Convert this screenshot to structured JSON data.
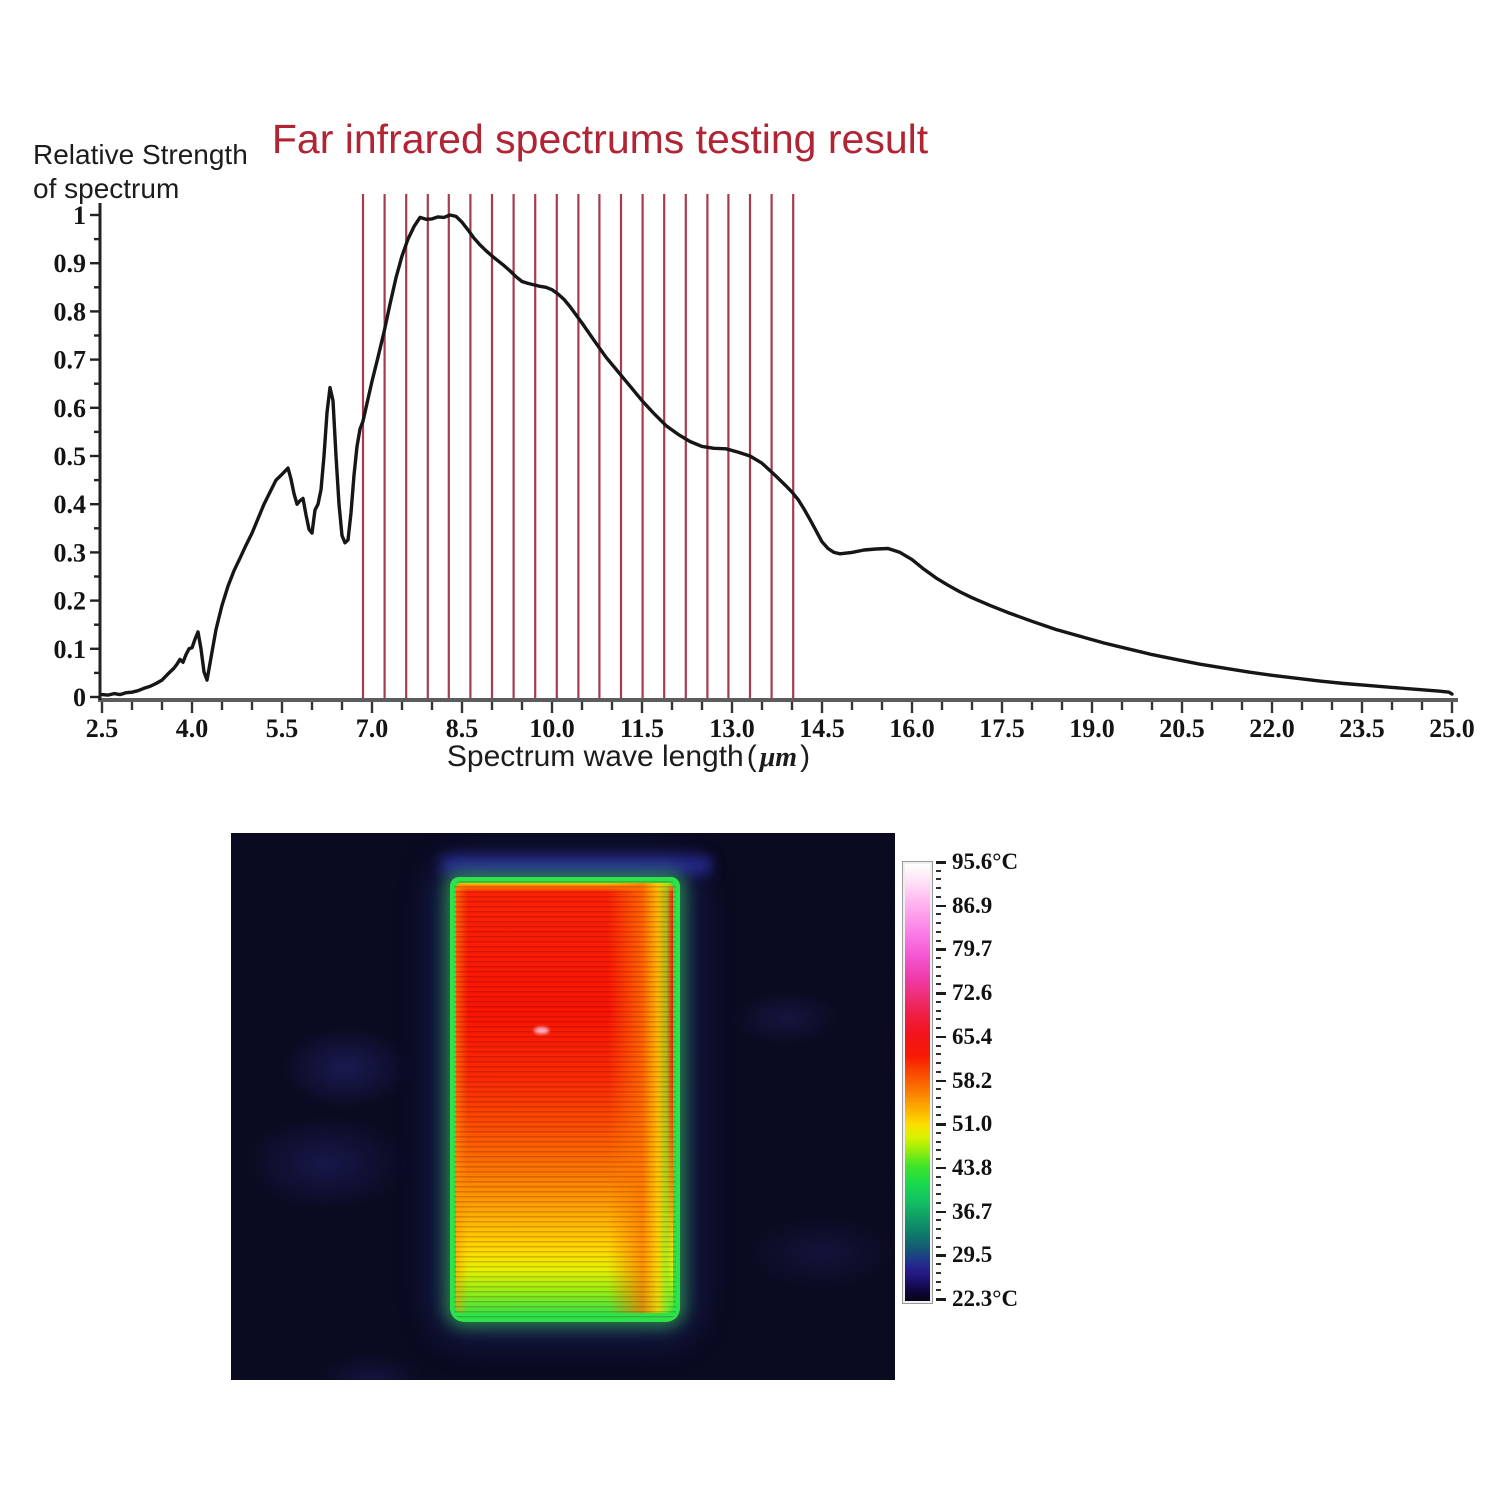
{
  "chart_data": {
    "type": "line",
    "title": "Far infrared spectrums testing result",
    "title_color": "#b02433",
    "ylabel_line1": "Relative Strength",
    "ylabel_line2": "of spectrum",
    "xlabel": "Spectrum wave length",
    "xlabel_paren_open": "(",
    "xlabel_unit": "μm",
    "xlabel_paren_close": ")",
    "xlim": [
      2.5,
      25.0
    ],
    "ylim": [
      0,
      1
    ],
    "grid": false,
    "legend": "none",
    "x_tick_labels": [
      "2.5",
      "4.0",
      "5.5",
      "7.0",
      "8.5",
      "10.0",
      "11.5",
      "13.0",
      "14.5",
      "16.0",
      "17.5",
      "19.0",
      "20.5",
      "22.0",
      "23.5",
      "25.0"
    ],
    "x_major_step": 1.5,
    "x_minor_step": 0.5,
    "y_tick_labels": [
      "1",
      "0.9",
      "0.8",
      "0.7",
      "0.6",
      "0.5",
      "0.4",
      "0.3",
      "0.2",
      "0.1",
      "0"
    ],
    "y_major_step": 0.1,
    "y_minor_step": 0.05,
    "curve_color": "#161616",
    "red_line_color": "#a63b50",
    "red_line_wavelengths": [
      6.85,
      7.21,
      7.57,
      7.93,
      8.28,
      8.64,
      9.0,
      9.36,
      9.72,
      10.08,
      10.44,
      10.79,
      11.15,
      11.51,
      11.87,
      12.23,
      12.59,
      12.94,
      13.3,
      13.66,
      14.02
    ],
    "series": [
      {
        "name": "far infrared spectrum",
        "points": [
          [
            2.5,
            0.005
          ],
          [
            2.6,
            0.004
          ],
          [
            2.7,
            0.007
          ],
          [
            2.8,
            0.005
          ],
          [
            2.9,
            0.009
          ],
          [
            3.0,
            0.01
          ],
          [
            3.1,
            0.013
          ],
          [
            3.2,
            0.018
          ],
          [
            3.3,
            0.022
          ],
          [
            3.4,
            0.028
          ],
          [
            3.5,
            0.035
          ],
          [
            3.6,
            0.048
          ],
          [
            3.7,
            0.06
          ],
          [
            3.75,
            0.068
          ],
          [
            3.8,
            0.078
          ],
          [
            3.85,
            0.072
          ],
          [
            3.9,
            0.088
          ],
          [
            3.95,
            0.1
          ],
          [
            4.0,
            0.102
          ],
          [
            4.05,
            0.12
          ],
          [
            4.1,
            0.135
          ],
          [
            4.15,
            0.1
          ],
          [
            4.2,
            0.052
          ],
          [
            4.25,
            0.035
          ],
          [
            4.3,
            0.07
          ],
          [
            4.4,
            0.14
          ],
          [
            4.5,
            0.19
          ],
          [
            4.6,
            0.23
          ],
          [
            4.7,
            0.262
          ],
          [
            4.8,
            0.288
          ],
          [
            4.9,
            0.315
          ],
          [
            5.0,
            0.34
          ],
          [
            5.1,
            0.37
          ],
          [
            5.2,
            0.4
          ],
          [
            5.3,
            0.425
          ],
          [
            5.4,
            0.45
          ],
          [
            5.5,
            0.462
          ],
          [
            5.6,
            0.475
          ],
          [
            5.65,
            0.452
          ],
          [
            5.7,
            0.422
          ],
          [
            5.75,
            0.4
          ],
          [
            5.8,
            0.407
          ],
          [
            5.85,
            0.412
          ],
          [
            5.9,
            0.378
          ],
          [
            5.95,
            0.348
          ],
          [
            6.0,
            0.34
          ],
          [
            6.05,
            0.388
          ],
          [
            6.1,
            0.4
          ],
          [
            6.15,
            0.43
          ],
          [
            6.2,
            0.5
          ],
          [
            6.25,
            0.59
          ],
          [
            6.3,
            0.642
          ],
          [
            6.35,
            0.615
          ],
          [
            6.4,
            0.5
          ],
          [
            6.45,
            0.4
          ],
          [
            6.5,
            0.335
          ],
          [
            6.55,
            0.32
          ],
          [
            6.6,
            0.326
          ],
          [
            6.65,
            0.382
          ],
          [
            6.7,
            0.46
          ],
          [
            6.75,
            0.52
          ],
          [
            6.8,
            0.556
          ],
          [
            6.85,
            0.572
          ],
          [
            6.9,
            0.6
          ],
          [
            7.0,
            0.655
          ],
          [
            7.1,
            0.705
          ],
          [
            7.2,
            0.757
          ],
          [
            7.3,
            0.815
          ],
          [
            7.4,
            0.87
          ],
          [
            7.5,
            0.915
          ],
          [
            7.6,
            0.95
          ],
          [
            7.7,
            0.976
          ],
          [
            7.8,
            0.995
          ],
          [
            7.9,
            0.991
          ],
          [
            8.0,
            0.992
          ],
          [
            8.1,
            0.996
          ],
          [
            8.2,
            0.995
          ],
          [
            8.3,
            1.0
          ],
          [
            8.4,
            0.997
          ],
          [
            8.5,
            0.985
          ],
          [
            8.6,
            0.969
          ],
          [
            8.7,
            0.952
          ],
          [
            8.8,
            0.938
          ],
          [
            8.9,
            0.926
          ],
          [
            9.0,
            0.915
          ],
          [
            9.1,
            0.905
          ],
          [
            9.2,
            0.895
          ],
          [
            9.3,
            0.884
          ],
          [
            9.4,
            0.872
          ],
          [
            9.5,
            0.862
          ],
          [
            9.6,
            0.858
          ],
          [
            9.7,
            0.855
          ],
          [
            9.8,
            0.852
          ],
          [
            9.9,
            0.85
          ],
          [
            10.0,
            0.845
          ],
          [
            10.1,
            0.836
          ],
          [
            10.2,
            0.825
          ],
          [
            10.3,
            0.81
          ],
          [
            10.5,
            0.776
          ],
          [
            10.7,
            0.74
          ],
          [
            10.9,
            0.705
          ],
          [
            11.1,
            0.675
          ],
          [
            11.3,
            0.645
          ],
          [
            11.5,
            0.615
          ],
          [
            11.7,
            0.588
          ],
          [
            11.9,
            0.563
          ],
          [
            12.1,
            0.545
          ],
          [
            12.3,
            0.53
          ],
          [
            12.5,
            0.52
          ],
          [
            12.7,
            0.516
          ],
          [
            12.9,
            0.515
          ],
          [
            13.1,
            0.508
          ],
          [
            13.3,
            0.5
          ],
          [
            13.5,
            0.485
          ],
          [
            13.7,
            0.462
          ],
          [
            13.9,
            0.438
          ],
          [
            14.0,
            0.425
          ],
          [
            14.1,
            0.41
          ],
          [
            14.2,
            0.39
          ],
          [
            14.3,
            0.368
          ],
          [
            14.4,
            0.345
          ],
          [
            14.5,
            0.322
          ],
          [
            14.6,
            0.308
          ],
          [
            14.7,
            0.3
          ],
          [
            14.8,
            0.297
          ],
          [
            15.0,
            0.3
          ],
          [
            15.2,
            0.305
          ],
          [
            15.4,
            0.307
          ],
          [
            15.6,
            0.308
          ],
          [
            15.8,
            0.3
          ],
          [
            16.0,
            0.285
          ],
          [
            16.2,
            0.265
          ],
          [
            16.4,
            0.247
          ],
          [
            16.6,
            0.232
          ],
          [
            16.8,
            0.218
          ],
          [
            17.0,
            0.206
          ],
          [
            17.3,
            0.19
          ],
          [
            17.6,
            0.175
          ],
          [
            18.0,
            0.157
          ],
          [
            18.4,
            0.14
          ],
          [
            18.8,
            0.126
          ],
          [
            19.2,
            0.112
          ],
          [
            19.6,
            0.1
          ],
          [
            20.0,
            0.088
          ],
          [
            20.4,
            0.078
          ],
          [
            20.8,
            0.068
          ],
          [
            21.2,
            0.06
          ],
          [
            21.6,
            0.052
          ],
          [
            22.0,
            0.045
          ],
          [
            22.4,
            0.039
          ],
          [
            22.8,
            0.033
          ],
          [
            23.2,
            0.028
          ],
          [
            23.6,
            0.024
          ],
          [
            24.0,
            0.02
          ],
          [
            24.4,
            0.016
          ],
          [
            24.8,
            0.012
          ],
          [
            24.95,
            0.01
          ],
          [
            25.0,
            0.006
          ]
        ]
      }
    ]
  },
  "thermal": {
    "background_color": "#0a0a20",
    "panel": {
      "edge_color": "#2ee24a",
      "core_gradient": [
        [
          0,
          "#ffc400"
        ],
        [
          0.008,
          "#ff7a00"
        ],
        [
          0.022,
          "#fb2206"
        ],
        [
          0.3,
          "#f91404"
        ],
        [
          0.46,
          "#fa2b04"
        ],
        [
          0.58,
          "#fb5202"
        ],
        [
          0.68,
          "#fc7b01"
        ],
        [
          0.77,
          "#fdab00"
        ],
        [
          0.85,
          "#fed800"
        ],
        [
          0.9,
          "#e4f200"
        ],
        [
          0.95,
          "#96ee16"
        ],
        [
          1,
          "#3ee442"
        ]
      ]
    },
    "scale": {
      "labels": [
        "95.6°C",
        "86.9",
        "79.7",
        "72.6",
        "65.4",
        "58.2",
        "51.0",
        "43.8",
        "36.7",
        "29.5",
        "22.3°C"
      ],
      "gradient": [
        [
          0,
          "#ffffff"
        ],
        [
          0.04,
          "#ffe2f6"
        ],
        [
          0.1,
          "#ffabee"
        ],
        [
          0.16,
          "#fa7ce6"
        ],
        [
          0.21,
          "#f457d2"
        ],
        [
          0.26,
          "#ef3cab"
        ],
        [
          0.3,
          "#ee2f79"
        ],
        [
          0.34,
          "#ef2049"
        ],
        [
          0.39,
          "#f2131b"
        ],
        [
          0.44,
          "#f81a04"
        ],
        [
          0.48,
          "#f94b00"
        ],
        [
          0.52,
          "#fb7b00"
        ],
        [
          0.56,
          "#fcae00"
        ],
        [
          0.595,
          "#fddc00"
        ],
        [
          0.625,
          "#d9f200"
        ],
        [
          0.655,
          "#97ee0b"
        ],
        [
          0.69,
          "#41e429"
        ],
        [
          0.73,
          "#19da4b"
        ],
        [
          0.77,
          "#13c262"
        ],
        [
          0.81,
          "#119c67"
        ],
        [
          0.845,
          "#0f7c69"
        ],
        [
          0.875,
          "#135e72"
        ],
        [
          0.9,
          "#1d3e85"
        ],
        [
          0.925,
          "#26218e"
        ],
        [
          0.95,
          "#1d1270"
        ],
        [
          0.975,
          "#100840"
        ],
        [
          1,
          "#070314"
        ]
      ]
    }
  }
}
